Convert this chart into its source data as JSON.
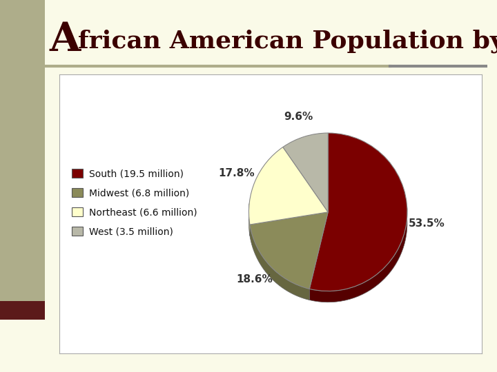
{
  "title_A": "A",
  "title_rest": "frican American Population by Region",
  "title_A_size": 42,
  "title_rest_size": 26,
  "background_color": "#FAFAE8",
  "left_bar_color": "#AEAD8A",
  "left_bar_bottom_color": "#5C1A1A",
  "chart_bg": "#FFFFFF",
  "chart_border_color": "#AAAAAA",
  "slices": [
    {
      "label": "South (19.5 million)",
      "value": 53.5,
      "pct": "53.5%",
      "color": "#7B0000",
      "dark_color": "#550000"
    },
    {
      "label": "Midwest (6.8 million)",
      "value": 18.6,
      "pct": "18.6%",
      "color": "#8B8B5A",
      "dark_color": "#666640"
    },
    {
      "label": "Northeast (6.6 million)",
      "value": 17.8,
      "pct": "17.8%",
      "color": "#FFFFCC",
      "dark_color": "#CCCC88"
    },
    {
      "label": "West (3.5 million)",
      "value": 9.6,
      "pct": "9.6%",
      "color": "#B8B8A8",
      "dark_color": "#888878"
    }
  ],
  "title_color": "#3B0000",
  "underline_color_left": "#AEAD8A",
  "underline_color_right": "#888888",
  "underline_split": 0.78,
  "label_color": "#333333",
  "label_fontsize": 11,
  "legend_fontsize": 10,
  "pie_depth": 0.06,
  "pie_startangle": 90
}
